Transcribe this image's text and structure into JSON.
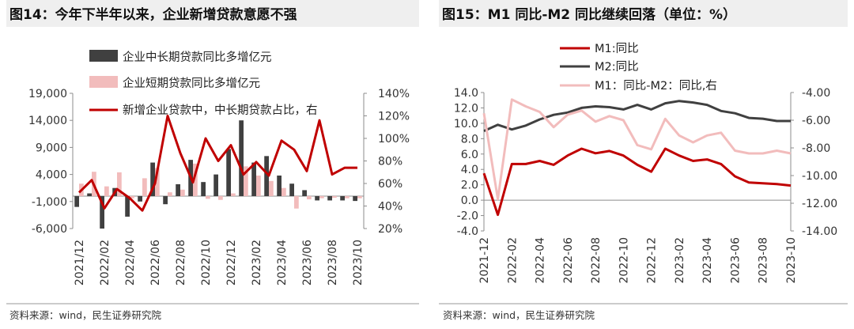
{
  "left": {
    "title": "图14：今年下半年以来，企业新增贷款意愿不强",
    "source": "资料来源：wind，民生证券研究院",
    "legend": [
      {
        "name": "企业中长期贷款同比多增亿元",
        "color": "#404040",
        "kind": "bar"
      },
      {
        "name": "企业短期贷款同比多增亿元",
        "color": "#f2bcbc",
        "kind": "bar"
      },
      {
        "name": "新增企业贷款中，中长期贷款占比，右",
        "color": "#c00000",
        "kind": "line"
      }
    ],
    "y_left_ticks": [
      "19,000",
      "14,000",
      "9,000",
      "4,000",
      "-1,000",
      "-6,000"
    ],
    "y_right_ticks": [
      "140%",
      "120%",
      "100%",
      "80%",
      "60%",
      "40%",
      "20%"
    ],
    "x_ticks": [
      "2021/12",
      "2022/02",
      "2022/04",
      "2022/06",
      "2022/08",
      "2022/10",
      "2022/12",
      "2023/02",
      "2023/04",
      "2023/06",
      "2023/08",
      "2023/10"
    ]
  },
  "right": {
    "title": "图15：M1 同比-M2 同比继续回落（单位：%）",
    "source": "资料来源：wind，民生证券研究院",
    "legend": [
      {
        "name": "M1:同比",
        "color": "#c00000"
      },
      {
        "name": "M2:同比",
        "color": "#404040"
      },
      {
        "name": "M1：同比-M2：同比,右",
        "color": "#f2bcbc"
      }
    ],
    "y_left_ticks": [
      "14.0",
      "12.0",
      "10.0",
      "8.0",
      "6.0",
      "4.0",
      "2.0",
      "0.0",
      "-2.0",
      "-4.0"
    ],
    "y_right_ticks": [
      "-4.00",
      "-6.00",
      "-8.00",
      "-10.00",
      "-12.00",
      "-14.00"
    ],
    "x_ticks": [
      "2021-12",
      "2022-02",
      "2022-04",
      "2022-06",
      "2022-08",
      "2022-10",
      "2022-12",
      "2023-02",
      "2023-04",
      "2023-06",
      "2023-08",
      "2023-10"
    ]
  },
  "chart_data": [
    {
      "type": "bar",
      "title": "图14：今年下半年以来，企业新增贷款意愿不强",
      "categories": [
        "2021/12",
        "2022/01",
        "2022/02",
        "2022/03",
        "2022/04",
        "2022/05",
        "2022/06",
        "2022/07",
        "2022/08",
        "2022/09",
        "2022/10",
        "2022/11",
        "2022/12",
        "2023/01",
        "2023/02",
        "2023/03",
        "2023/04",
        "2023/05",
        "2023/06",
        "2023/07",
        "2023/08",
        "2023/09",
        "2023/10"
      ],
      "series": [
        {
          "name": "企业中长期贷款同比多增亿元",
          "type": "bar",
          "axis": "left",
          "values": [
            -2000,
            500,
            -6000,
            1500,
            -3800,
            -1000,
            6200,
            -1500,
            2200,
            6700,
            2600,
            4000,
            8700,
            14000,
            6200,
            7400,
            3800,
            2300,
            1100,
            -800,
            -800,
            -800,
            -900
          ]
        },
        {
          "name": "企业短期贷款同比多增亿元",
          "type": "bar",
          "axis": "left",
          "values": [
            2300,
            4500,
            1800,
            4400,
            -400,
            3300,
            5200,
            700,
            1200,
            6000,
            -500,
            -700,
            500,
            5500,
            3800,
            2800,
            1500,
            -2300,
            -600,
            -400,
            -300,
            -400,
            -400
          ]
        },
        {
          "name": "新增企业贷款中，中长期贷款占比，右",
          "type": "line",
          "axis": "right",
          "values": [
            52,
            63,
            38,
            55,
            47,
            36,
            60,
            120,
            87,
            61,
            100,
            80,
            94,
            68,
            79,
            67,
            98,
            90,
            71,
            116,
            68,
            74,
            74
          ]
        }
      ],
      "ylim": [
        -6000,
        19000
      ],
      "y2lim": [
        20,
        140
      ],
      "legend": "top"
    },
    {
      "type": "line",
      "title": "图15：M1 同比-M2 同比继续回落（单位：%）",
      "categories": [
        "2021-12",
        "2022-01",
        "2022-02",
        "2022-03",
        "2022-04",
        "2022-05",
        "2022-06",
        "2022-07",
        "2022-08",
        "2022-09",
        "2022-10",
        "2022-11",
        "2022-12",
        "2023-01",
        "2023-02",
        "2023-03",
        "2023-04",
        "2023-05",
        "2023-06",
        "2023-07",
        "2023-08",
        "2023-09",
        "2023-10"
      ],
      "series": [
        {
          "name": "M1:同比",
          "axis": "left",
          "values": [
            3.5,
            -1.9,
            4.7,
            4.7,
            5.1,
            4.6,
            5.8,
            6.7,
            6.1,
            6.4,
            5.8,
            4.6,
            3.7,
            6.7,
            5.8,
            5.1,
            5.3,
            4.7,
            3.1,
            2.3,
            2.2,
            2.1,
            1.9
          ]
        },
        {
          "name": "M2:同比",
          "axis": "left",
          "values": [
            9.0,
            9.8,
            9.2,
            9.7,
            10.5,
            11.1,
            11.4,
            12.0,
            12.2,
            12.1,
            11.8,
            12.4,
            11.8,
            12.6,
            12.9,
            12.7,
            12.4,
            11.6,
            11.3,
            10.7,
            10.6,
            10.3,
            10.3
          ]
        },
        {
          "name": "M1：同比-M2：同比,右",
          "axis": "right",
          "values": [
            -5.5,
            -11.7,
            -4.5,
            -5.0,
            -5.4,
            -6.5,
            -5.6,
            -5.3,
            -6.1,
            -5.7,
            -6.0,
            -7.8,
            -8.1,
            -5.9,
            -7.1,
            -7.6,
            -7.1,
            -6.9,
            -8.2,
            -8.4,
            -8.4,
            -8.2,
            -8.4
          ]
        }
      ],
      "ylim": [
        -4,
        14
      ],
      "y2lim": [
        -14,
        -4
      ],
      "legend": "top"
    }
  ]
}
